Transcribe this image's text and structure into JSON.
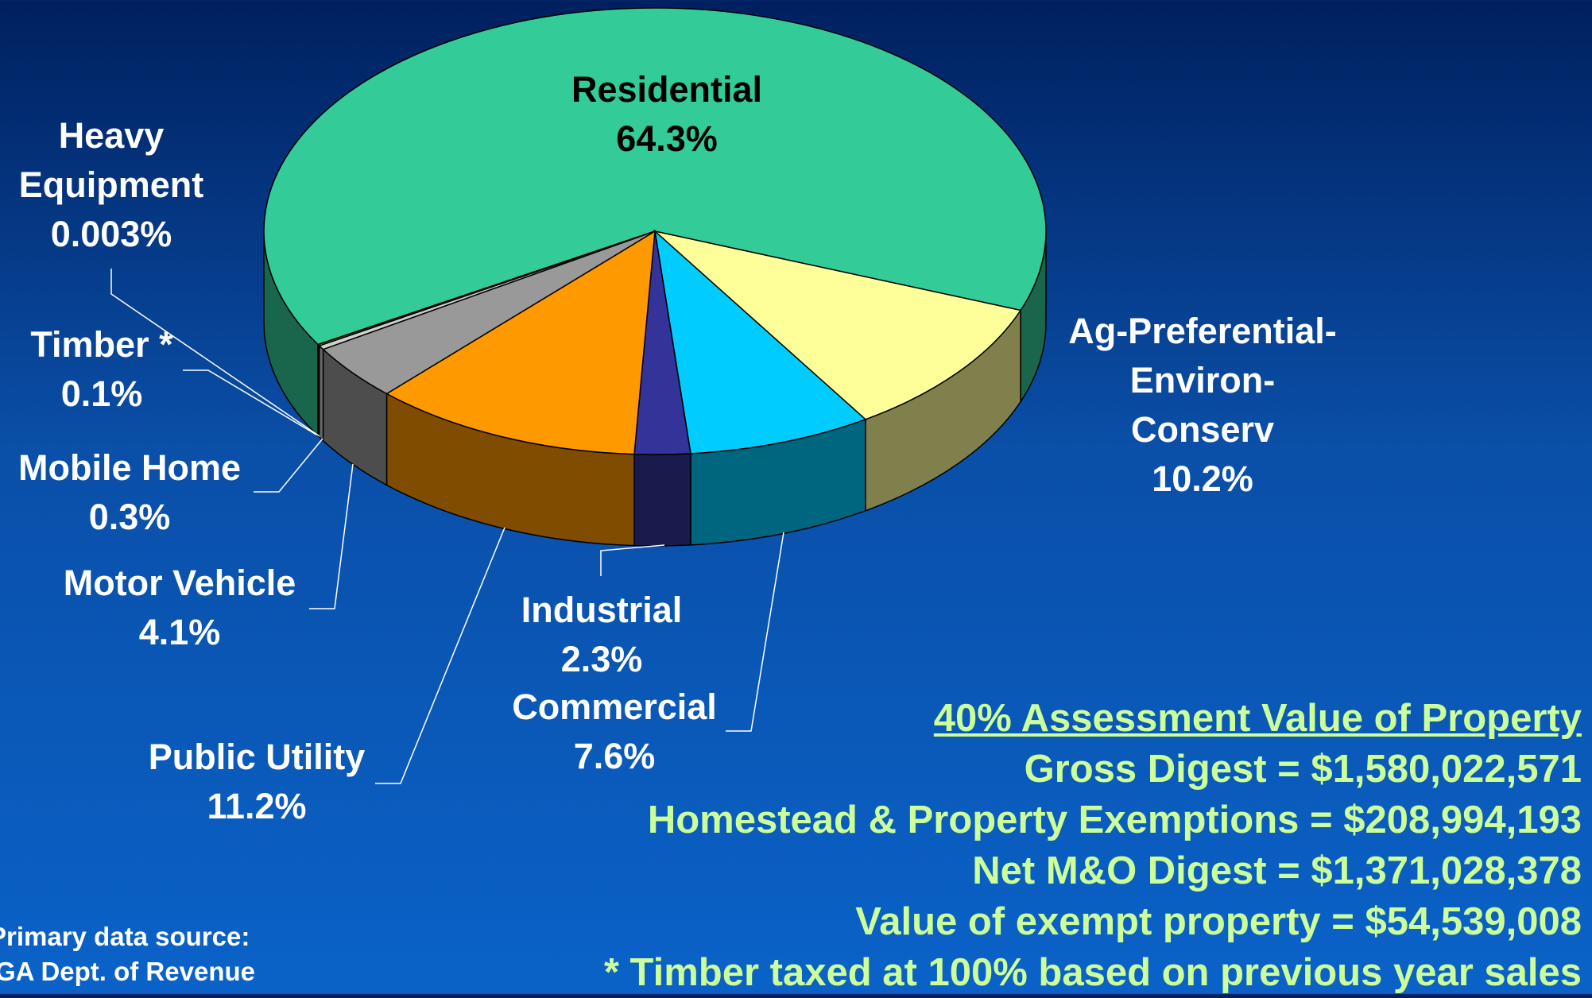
{
  "chart_data": {
    "type": "pie",
    "categories": [
      "Residential",
      "Ag-Preferential-\nEnviron-\nConserv",
      "Commercial",
      "Industrial",
      "Public Utility",
      "Motor Vehicle",
      "Mobile Home",
      "Timber *",
      "Heavy\nEquipment"
    ],
    "values": [
      64.3,
      10.2,
      7.6,
      2.3,
      11.2,
      4.1,
      0.3,
      0.1,
      0.003
    ],
    "value_labels": [
      "64.3%",
      "10.2%",
      "7.6%",
      "2.3%",
      "11.2%",
      "4.1%",
      "0.3%",
      "0.1%",
      "0.003%"
    ],
    "colors": [
      "#33cc99",
      "#ffff99",
      "#00ccff",
      "#333399",
      "#ff9900",
      "#999999",
      "#d0d0d0",
      "#99cc00",
      "#669966"
    ],
    "annotations": {
      "title": "40% Assessment Value of Property",
      "lines": [
        "Gross Digest = $1,580,022,571",
        "Homestead & Property Exemptions = $208,994,193",
        "Net M&O Digest = $1,371,028,378",
        "Value of exempt property = $54,539,008",
        "* Timber taxed at 100% based on previous year sales"
      ]
    },
    "source": [
      "Primary data source:",
      "GA Dept. of Revenue"
    ]
  }
}
